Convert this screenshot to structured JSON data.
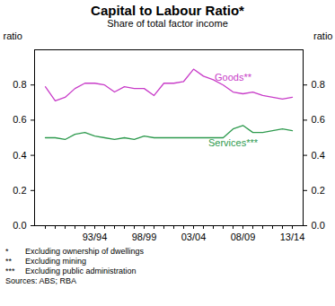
{
  "chart_data": {
    "type": "line",
    "title": "Capital to Labour Ratio*",
    "subtitle": "Share of total factor income",
    "ylabel": "ratio",
    "y2label": "ratio",
    "categories": [
      null,
      null,
      null,
      null,
      null,
      "93/94",
      null,
      null,
      null,
      null,
      "98/99",
      null,
      null,
      null,
      null,
      "03/04",
      null,
      null,
      null,
      null,
      "08/09",
      null,
      null,
      null,
      null,
      "13/14"
    ],
    "series": [
      {
        "name": "Goods**",
        "color": "#c83cc8",
        "values": [
          0.79,
          0.71,
          0.73,
          0.78,
          0.81,
          0.81,
          0.8,
          0.76,
          0.79,
          0.78,
          0.78,
          0.74,
          0.81,
          0.81,
          0.82,
          0.89,
          0.85,
          0.83,
          0.8,
          0.76,
          0.75,
          0.76,
          0.74,
          0.73,
          0.72,
          0.73
        ]
      },
      {
        "name": "Services***",
        "color": "#2e9a4e",
        "values": [
          0.5,
          0.5,
          0.49,
          0.52,
          0.53,
          0.51,
          0.5,
          0.49,
          0.5,
          0.49,
          0.51,
          0.5,
          0.5,
          0.5,
          0.5,
          0.5,
          0.5,
          0.5,
          0.5,
          0.55,
          0.57,
          0.53,
          0.53,
          0.54,
          0.55,
          0.54
        ]
      }
    ],
    "ylim": [
      0,
      1
    ],
    "yticks": [
      {
        "value": 0,
        "label": "0.0"
      },
      {
        "value": 0.2,
        "label": "0.2"
      },
      {
        "value": 0.4,
        "label": "0.4"
      },
      {
        "value": 0.6,
        "label": "0.6"
      },
      {
        "value": 0.8,
        "label": "0.8"
      }
    ],
    "y2ticks": [
      {
        "value": 0,
        "label": "0.0"
      },
      {
        "value": 0.2,
        "label": "0.2"
      },
      {
        "value": 0.4,
        "label": "0.4"
      },
      {
        "value": 0.6,
        "label": "0.6"
      },
      {
        "value": 0.8,
        "label": "0.8"
      }
    ],
    "grid": false,
    "footnotes": [
      {
        "mark": "*",
        "text": "Excluding ownership of dwellings"
      },
      {
        "mark": "**",
        "text": "Excluding mining"
      },
      {
        "mark": "***",
        "text": "Excluding public administration"
      }
    ],
    "source": "Sources: ABS; RBA"
  }
}
